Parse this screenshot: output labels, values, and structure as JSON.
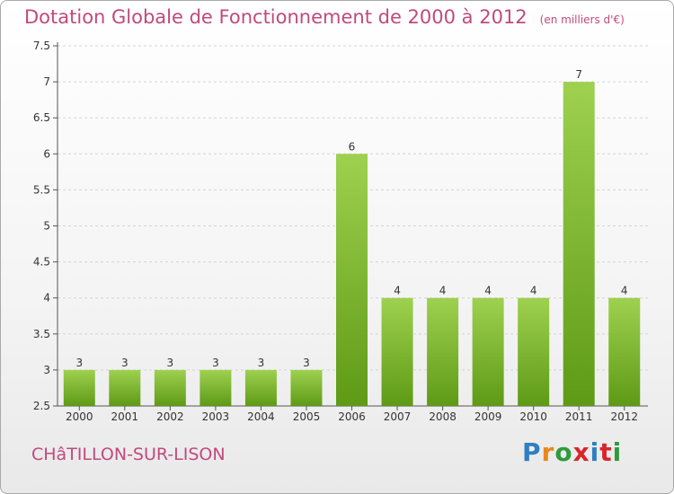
{
  "title": "Dotation Globale de Fonctionnement de 2000 à 2012",
  "subtitle": "(en milliers d'€)",
  "city": "CHâTILLON-SUR-LISON",
  "logo": {
    "letters": [
      "P",
      "r",
      "o",
      "x",
      "i",
      "t",
      "i"
    ],
    "colors": [
      "#2f7fc1",
      "#e8891c",
      "#2f9a3c",
      "#d7262b",
      "#2f7fc1",
      "#d7262b",
      "#2f9a3c"
    ]
  },
  "colors": {
    "title": "#c04a7e",
    "bar_top": "#9ed14f",
    "bar_bottom": "#5e9a16",
    "grid": "#d4d4d4",
    "axis": "#555555"
  },
  "chart_data": {
    "type": "bar",
    "categories": [
      "2000",
      "2001",
      "2002",
      "2003",
      "2004",
      "2005",
      "2006",
      "2007",
      "2008",
      "2009",
      "2010",
      "2011",
      "2012"
    ],
    "values": [
      3,
      3,
      3,
      3,
      3,
      3,
      6,
      4,
      4,
      4,
      4,
      7,
      4
    ],
    "labels": [
      "3",
      "3",
      "3",
      "3",
      "3",
      "3",
      "6",
      "4",
      "4",
      "4",
      "4",
      "7",
      "4"
    ],
    "ylim": [
      2.5,
      7.5
    ],
    "yticks": [
      2.5,
      3,
      3.5,
      4,
      4.5,
      5,
      5.5,
      6,
      6.5,
      7,
      7.5
    ],
    "ytick_labels": [
      "2.5",
      "3",
      "3.5",
      "4",
      "4.5",
      "5",
      "5.5",
      "6",
      "6.5",
      "7",
      "7.5"
    ],
    "grid": true,
    "xlabel": "",
    "ylabel": ""
  }
}
